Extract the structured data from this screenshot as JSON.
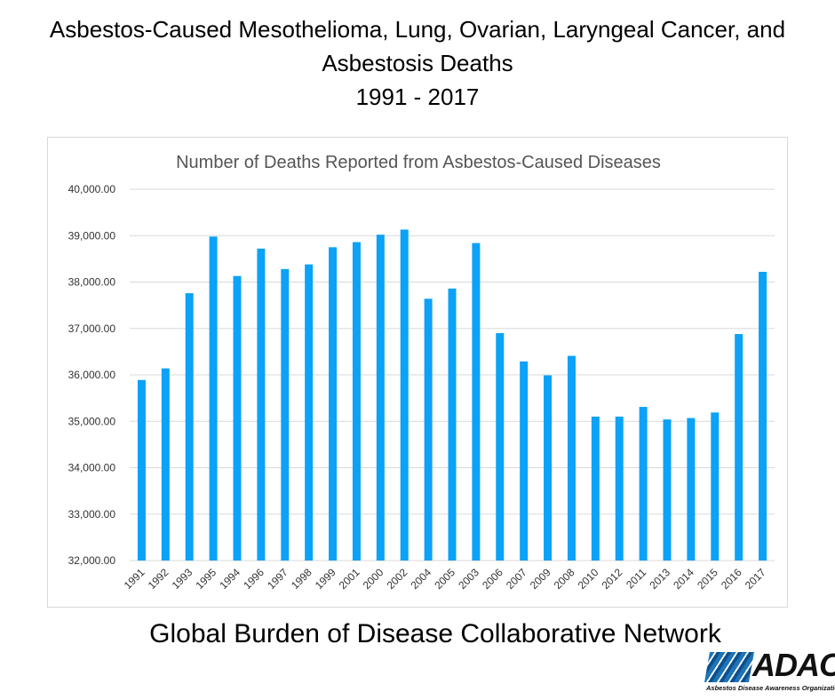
{
  "header": {
    "line1": "Asbestos-Caused Mesothelioma, Lung, Ovarian, Laryngeal Cancer, and",
    "line2": "Asbestosis Deaths",
    "line3": "1991 - 2017"
  },
  "footer": {
    "source": "Global Burden of Disease Collaborative Network"
  },
  "logo": {
    "wordmark": "ADAO",
    "tagline": "Asbestos Disease Awareness Organization"
  },
  "colors": {
    "bar": "#0ba2f7",
    "grid": "#d9d9d9",
    "title": "#555555"
  },
  "chart_data": {
    "type": "bar",
    "title": "Number of Deaths Reported from Asbestos-Caused Diseases",
    "xlabel": "",
    "ylabel": "",
    "ylim": [
      32000,
      40000
    ],
    "yticks": [
      32000,
      33000,
      34000,
      35000,
      36000,
      37000,
      38000,
      39000,
      40000
    ],
    "ytick_labels": [
      "32,000.00",
      "33,000.00",
      "34,000.00",
      "35,000.00",
      "36,000.00",
      "37,000.00",
      "38,000.00",
      "39,000.00",
      "40,000.00"
    ],
    "grid": true,
    "legend": "none",
    "categories": [
      "1991",
      "1992",
      "1993",
      "1995",
      "1994",
      "1996",
      "1997",
      "1998",
      "1999",
      "2001",
      "2000",
      "2002",
      "2004",
      "2005",
      "2003",
      "2006",
      "2007",
      "2009",
      "2008",
      "2010",
      "2012",
      "2011",
      "2013",
      "2014",
      "2015",
      "2016",
      "2017"
    ],
    "values": [
      35890,
      36140,
      37760,
      38980,
      38130,
      38720,
      38280,
      38380,
      38750,
      38860,
      39020,
      39130,
      37640,
      37860,
      38840,
      36900,
      36290,
      35990,
      36410,
      35100,
      35100,
      35310,
      35040,
      35070,
      35190,
      36880,
      38220
    ]
  }
}
